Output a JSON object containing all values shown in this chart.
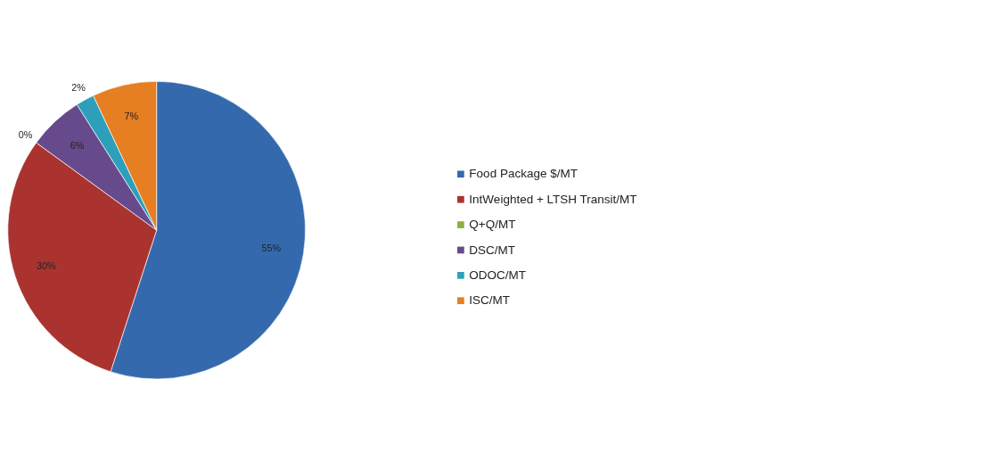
{
  "chart_data": {
    "type": "pie",
    "categories": [
      "Food Package $/MT",
      "IntWeighted + LTSH Transit/MT",
      "Q+Q/MT",
      "DSC/MT",
      "ODOC/MT",
      "ISC/MT"
    ],
    "values": [
      55,
      30,
      0,
      6,
      2,
      7
    ],
    "colors": [
      "#3569ad",
      "#aa3330",
      "#8ab23c",
      "#674a8c",
      "#2d9fbb",
      "#e67e22"
    ],
    "value_labels": [
      "55%",
      "30%",
      "0%",
      "6%",
      "2%",
      "7%"
    ],
    "legend": "right"
  }
}
